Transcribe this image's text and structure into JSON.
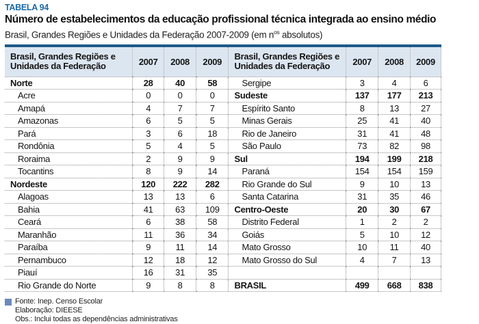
{
  "page": {
    "tag": "TABELA 94",
    "title": "Número de estabelecimentos da educação profissional técnica integrada ao ensino médio",
    "subtitle_prefix": "Brasil, Grandes Regiões e Unidades da Federação 2007-2009 (em n",
    "subtitle_sup": "os",
    "subtitle_suffix": " absolutos)"
  },
  "colors": {
    "tag_blue": "#1a6aa5",
    "top_rule_blue": "#1c5a88",
    "header_bg": "#dce6f1",
    "footnote_square_blue": "#6b8abc",
    "dotted_border": "#8f8f8f"
  },
  "table": {
    "header_label": "Brasil, Grandes Regiões e\nUnidades da Federação",
    "years": [
      "2007",
      "2008",
      "2009"
    ],
    "left_rows": [
      {
        "label": "Norte",
        "bold": true,
        "indent": false,
        "values": [
          "28",
          "40",
          "58"
        ]
      },
      {
        "label": "Acre",
        "bold": false,
        "indent": true,
        "values": [
          "0",
          "0",
          "0"
        ]
      },
      {
        "label": "Amapá",
        "bold": false,
        "indent": true,
        "values": [
          "4",
          "7",
          "7"
        ]
      },
      {
        "label": "Amazonas",
        "bold": false,
        "indent": true,
        "values": [
          "6",
          "5",
          "5"
        ]
      },
      {
        "label": "Pará",
        "bold": false,
        "indent": true,
        "values": [
          "3",
          "6",
          "18"
        ]
      },
      {
        "label": "Rondônia",
        "bold": false,
        "indent": true,
        "values": [
          "5",
          "4",
          "5"
        ]
      },
      {
        "label": "Roraima",
        "bold": false,
        "indent": true,
        "values": [
          "2",
          "9",
          "9"
        ]
      },
      {
        "label": "Tocantins",
        "bold": false,
        "indent": true,
        "values": [
          "8",
          "9",
          "14"
        ]
      },
      {
        "label": "Nordeste",
        "bold": true,
        "indent": false,
        "values": [
          "120",
          "222",
          "282"
        ]
      },
      {
        "label": "Alagoas",
        "bold": false,
        "indent": true,
        "values": [
          "13",
          "13",
          "6"
        ]
      },
      {
        "label": "Bahia",
        "bold": false,
        "indent": true,
        "values": [
          "41",
          "63",
          "109"
        ]
      },
      {
        "label": "Ceará",
        "bold": false,
        "indent": true,
        "values": [
          "6",
          "38",
          "58"
        ]
      },
      {
        "label": "Maranhão",
        "bold": false,
        "indent": true,
        "values": [
          "11",
          "36",
          "34"
        ]
      },
      {
        "label": "Paraíba",
        "bold": false,
        "indent": true,
        "values": [
          "9",
          "11",
          "14"
        ]
      },
      {
        "label": "Pernambuco",
        "bold": false,
        "indent": true,
        "values": [
          "12",
          "18",
          "12"
        ]
      },
      {
        "label": "Piauí",
        "bold": false,
        "indent": true,
        "values": [
          "16",
          "31",
          "35"
        ]
      },
      {
        "label": "Rio Grande do Norte",
        "bold": false,
        "indent": true,
        "values": [
          "9",
          "8",
          "8"
        ]
      }
    ],
    "right_rows": [
      {
        "label": "Sergipe",
        "bold": false,
        "indent": true,
        "values": [
          "3",
          "4",
          "6"
        ]
      },
      {
        "label": "Sudeste",
        "bold": true,
        "indent": false,
        "values": [
          "137",
          "177",
          "213"
        ]
      },
      {
        "label": "Espírito Santo",
        "bold": false,
        "indent": true,
        "values": [
          "8",
          "13",
          "27"
        ]
      },
      {
        "label": "Minas Gerais",
        "bold": false,
        "indent": true,
        "values": [
          "25",
          "41",
          "40"
        ]
      },
      {
        "label": "Rio de Janeiro",
        "bold": false,
        "indent": true,
        "values": [
          "31",
          "41",
          "48"
        ]
      },
      {
        "label": "São Paulo",
        "bold": false,
        "indent": true,
        "values": [
          "73",
          "82",
          "98"
        ]
      },
      {
        "label": "Sul",
        "bold": true,
        "indent": false,
        "values": [
          "194",
          "199",
          "218"
        ]
      },
      {
        "label": "Paraná",
        "bold": false,
        "indent": true,
        "values": [
          "154",
          "154",
          "159"
        ]
      },
      {
        "label": "Rio Grande do Sul",
        "bold": false,
        "indent": true,
        "values": [
          "9",
          "10",
          "13"
        ]
      },
      {
        "label": "Santa Catarina",
        "bold": false,
        "indent": true,
        "values": [
          "31",
          "35",
          "46"
        ]
      },
      {
        "label": "Centro-Oeste",
        "bold": true,
        "indent": false,
        "values": [
          "20",
          "30",
          "67"
        ]
      },
      {
        "label": "Distrito Federal",
        "bold": false,
        "indent": true,
        "values": [
          "1",
          "2",
          "2"
        ]
      },
      {
        "label": "Goiás",
        "bold": false,
        "indent": true,
        "values": [
          "5",
          "10",
          "12"
        ]
      },
      {
        "label": "Mato Grosso",
        "bold": false,
        "indent": true,
        "values": [
          "10",
          "11",
          "40"
        ]
      },
      {
        "label": "Mato Grosso do Sul",
        "bold": false,
        "indent": true,
        "values": [
          "4",
          "7",
          "13"
        ]
      },
      {
        "label": "",
        "bold": false,
        "indent": false,
        "values": [
          "",
          "",
          ""
        ]
      },
      {
        "label": "BRASIL",
        "bold": true,
        "indent": false,
        "values": [
          "499",
          "668",
          "838"
        ]
      }
    ]
  },
  "footer": {
    "source": "Fonte: Inep. Censo Escolar",
    "elaboration": "Elaboração: DIEESE",
    "obs": "Obs.: Inclui todas as dependências administrativas"
  }
}
